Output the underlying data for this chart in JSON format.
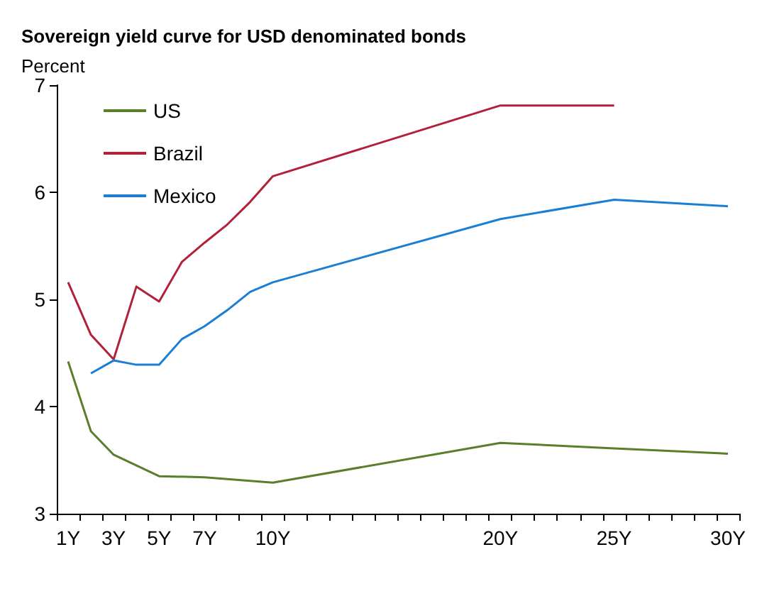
{
  "chart_data": {
    "type": "line",
    "title": "Sovereign yield curve for USD denominated bonds",
    "ylabel": "Percent",
    "categories": [
      "1Y",
      null,
      "3Y",
      null,
      "5Y",
      null,
      "7Y",
      null,
      null,
      "10Y",
      null,
      null,
      null,
      null,
      null,
      null,
      null,
      null,
      null,
      "20Y",
      null,
      null,
      null,
      null,
      "25Y",
      null,
      null,
      null,
      null,
      "30Y"
    ],
    "series": [
      {
        "name": "US",
        "color": "#5a7f2b",
        "values": [
          4.42,
          3.77,
          3.55,
          null,
          3.35,
          null,
          3.34,
          null,
          null,
          3.29,
          null,
          null,
          null,
          null,
          null,
          null,
          null,
          null,
          null,
          3.66,
          null,
          null,
          null,
          null,
          3.61,
          null,
          null,
          null,
          null,
          3.56
        ]
      },
      {
        "name": "Brazil",
        "color": "#b2203a",
        "values": [
          5.16,
          4.67,
          4.44,
          5.12,
          4.98,
          5.35,
          5.53,
          5.7,
          5.91,
          6.15,
          null,
          null,
          null,
          null,
          null,
          null,
          null,
          null,
          null,
          6.81,
          null,
          null,
          null,
          null,
          6.81,
          null,
          null,
          null,
          null,
          null
        ]
      },
      {
        "name": "Mexico",
        "color": "#1a7fd4",
        "values": [
          null,
          4.31,
          4.43,
          4.39,
          4.39,
          4.63,
          4.75,
          4.9,
          5.07,
          5.16,
          null,
          null,
          null,
          null,
          null,
          null,
          null,
          null,
          null,
          5.75,
          null,
          null,
          null,
          null,
          5.93,
          null,
          null,
          null,
          null,
          5.87
        ]
      }
    ],
    "ylim": [
      3,
      7
    ],
    "yticks": [
      3,
      4,
      5,
      6,
      7
    ],
    "grid": false,
    "legend": "top left",
    "marker": "none",
    "line_style": "solid"
  }
}
